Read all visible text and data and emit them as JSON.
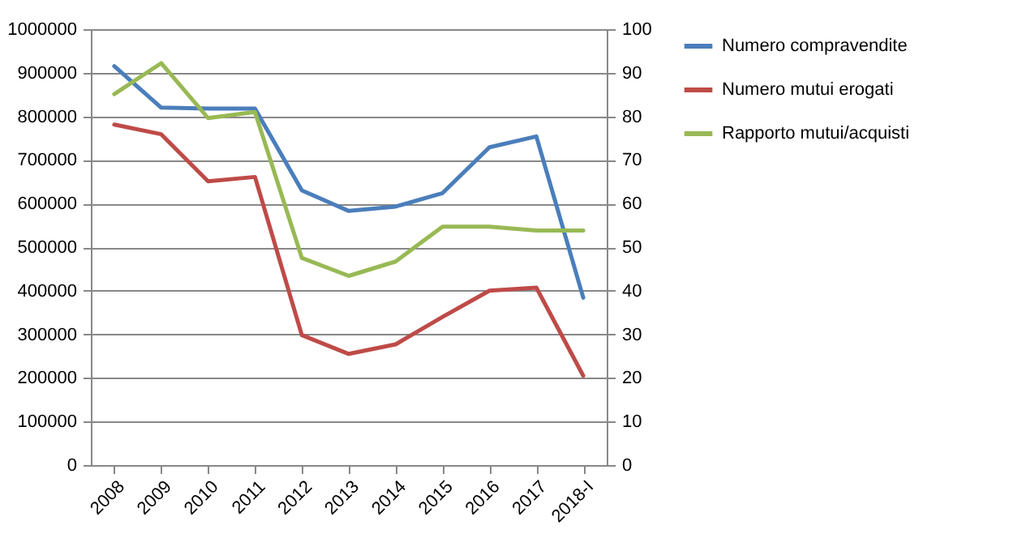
{
  "chart_data": {
    "type": "line",
    "categories": [
      "2008",
      "2009",
      "2010",
      "2011",
      "2012",
      "2013",
      "2014",
      "2015",
      "2016",
      "2017",
      "2018-I"
    ],
    "series": [
      {
        "name": "Numero compravendite",
        "color": "#4a7ebb",
        "values": [
          915000,
          820000,
          818000,
          818000,
          630000,
          583000,
          593000,
          624000,
          729000,
          754000,
          384000
        ]
      },
      {
        "name": "Numero mutui erogati",
        "color": "#be4b48",
        "values": [
          781000,
          759000,
          651000,
          661000,
          298000,
          255000,
          277000,
          340000,
          400000,
          407000,
          205000
        ]
      },
      {
        "name": "Rapporto mutui/acquisti",
        "color": "#98b954",
        "axis": "y2",
        "values": [
          85.1,
          92.2,
          79.6,
          81,
          47.5,
          43.4,
          46.7,
          54.7,
          54.7,
          53.8,
          53.8
        ]
      }
    ],
    "ylim": [
      0,
      1000000
    ],
    "yticks": [
      0,
      100000,
      200000,
      300000,
      400000,
      500000,
      600000,
      700000,
      800000,
      900000,
      1000000
    ],
    "y2lim": [
      0,
      100
    ],
    "y2ticks": [
      0,
      10,
      20,
      30,
      40,
      50,
      60,
      70,
      80,
      90,
      100
    ],
    "grid": "y",
    "legend": "right",
    "marker": "none",
    "line_style": "solid"
  }
}
